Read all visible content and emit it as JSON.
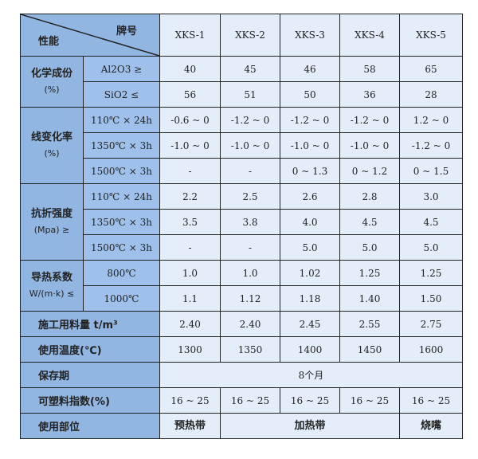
{
  "header": {
    "corner_top": "牌号",
    "corner_bottom": "性能",
    "grades": [
      "XKS-1",
      "XKS-2",
      "XKS-3",
      "XKS-4",
      "XKS-5"
    ]
  },
  "groups": {
    "chem": {
      "label": "化学成份",
      "unit": "(%)",
      "rows": [
        {
          "label": "Al2O3 ≥",
          "values": [
            "40",
            "45",
            "46",
            "58",
            "65"
          ]
        },
        {
          "label": "SiO2 ≤",
          "values": [
            "56",
            "51",
            "50",
            "36",
            "28"
          ]
        }
      ]
    },
    "linear": {
      "label": "线变化率",
      "unit": "(%)",
      "rows": [
        {
          "label": "110℃ × 24h",
          "values": [
            "-0.6 ~ 0",
            "-1.2 ~ 0",
            "-1.2 ~ 0",
            "-1.2 ~ 0",
            "1.2 ~ 0"
          ]
        },
        {
          "label": "1350℃ × 3h",
          "values": [
            "-1.0 ~ 0",
            "-1.0 ~ 0",
            "-1.0 ~ 0",
            "-1.0 ~ 0",
            "-1.2 ~ 0"
          ]
        },
        {
          "label": "1500℃ × 3h",
          "values": [
            "-",
            "-",
            "0 ~ 1.3",
            "0 ~ 1.2",
            "0 ~ 1.5"
          ]
        }
      ]
    },
    "flex": {
      "label": "抗折强度",
      "unit": "(Mpa) ≥",
      "rows": [
        {
          "label": "110℃ × 24h",
          "values": [
            "2.2",
            "2.5",
            "2.6",
            "2.8",
            "3.0"
          ]
        },
        {
          "label": "1350℃ × 3h",
          "values": [
            "3.5",
            "3.8",
            "4.0",
            "4.5",
            "4.5"
          ]
        },
        {
          "label": "1500℃ × 3h",
          "values": [
            "-",
            "-",
            "5.0",
            "5.0",
            "5.0"
          ]
        }
      ]
    },
    "thermal": {
      "label": "导热系数",
      "unit": "W/(m·k) ≤",
      "rows": [
        {
          "label": "800℃",
          "values": [
            "1.0",
            "1.0",
            "1.02",
            "1.25",
            "1.25"
          ]
        },
        {
          "label": "1000℃",
          "values": [
            "1.1",
            "1.12",
            "1.18",
            "1.40",
            "1.50"
          ]
        }
      ]
    }
  },
  "single_rows": [
    {
      "label": "施工用料量 t/m³",
      "values": [
        "2.40",
        "2.40",
        "2.45",
        "2.55",
        "2.75"
      ]
    },
    {
      "label": "使用温度(℃)",
      "values": [
        "1300",
        "1350",
        "1400",
        "1450",
        "1600"
      ]
    }
  ],
  "shelf_life": {
    "label": "保存期",
    "value": "8个月"
  },
  "plasticity": {
    "label": "可塑料指数(%)",
    "values": [
      "16 ~ 25",
      "16 ~ 25",
      "16 ~ 25",
      "16 ~ 25",
      "16 ~ 25"
    ]
  },
  "usage": {
    "label": "使用部位",
    "preheat": "预热带",
    "heating": "加热带",
    "burner": "烧嘴"
  }
}
